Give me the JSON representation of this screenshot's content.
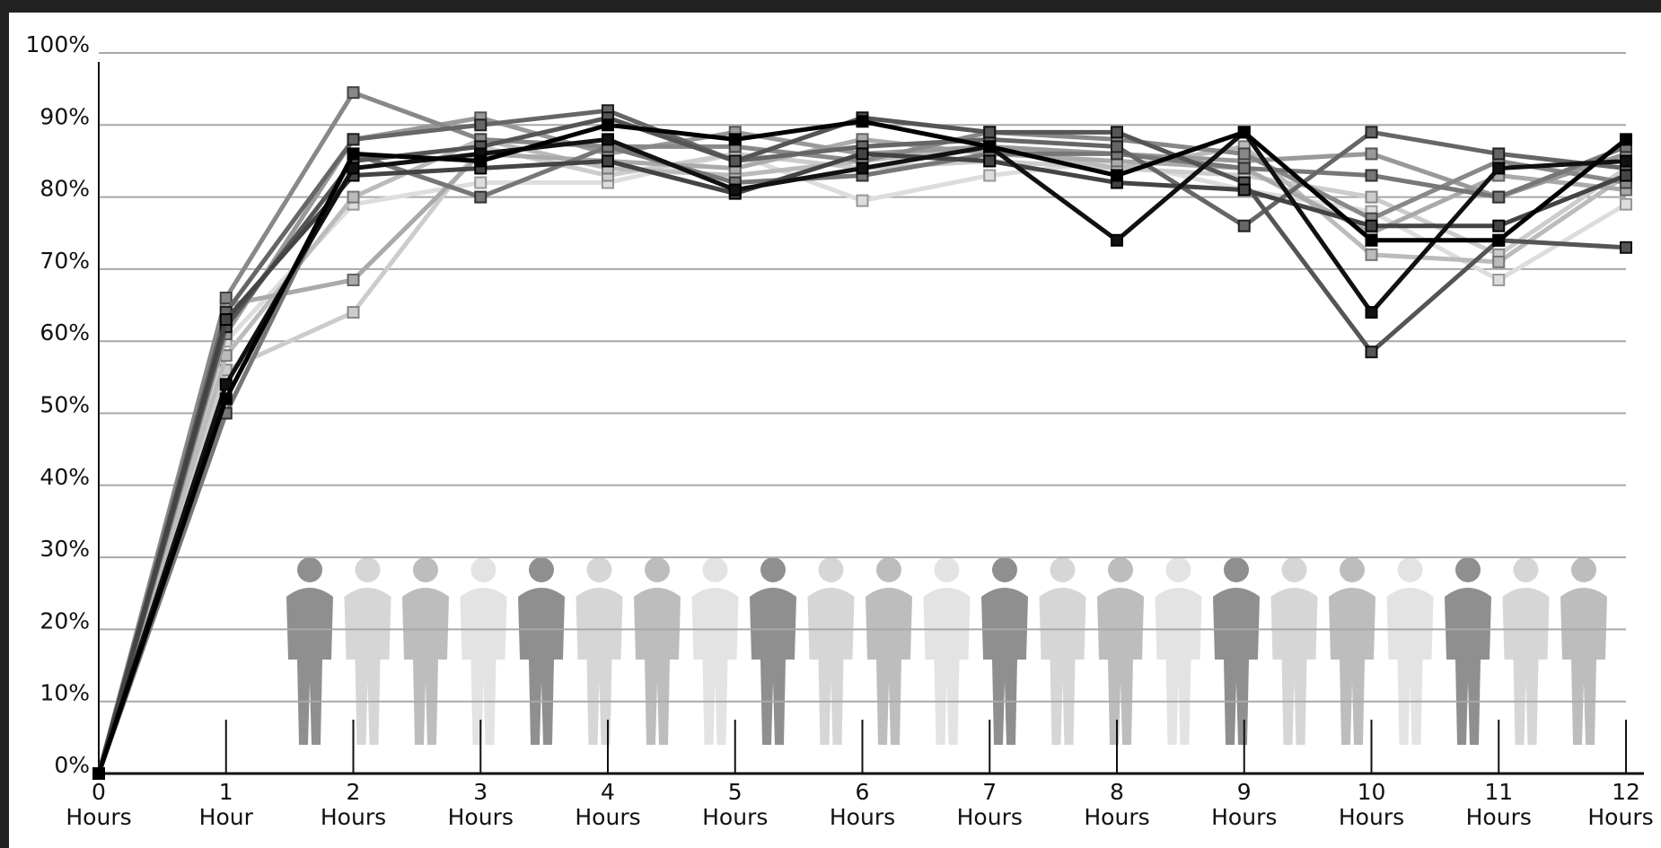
{
  "chart_data": {
    "type": "line",
    "x": [
      0,
      1,
      2,
      3,
      4,
      5,
      6,
      7,
      8,
      9,
      10,
      11,
      12
    ],
    "xlim": [
      0,
      12
    ],
    "xticks": [
      0,
      1,
      2,
      3,
      4,
      5,
      6,
      7,
      8,
      9,
      10,
      11,
      12
    ],
    "x_units": [
      "Hours",
      "Hour",
      "Hours",
      "Hours",
      "Hours",
      "Hours",
      "Hours",
      "Hours",
      "Hours",
      "Hours",
      "Hours",
      "Hours",
      "Hours"
    ],
    "ylim": [
      0,
      100
    ],
    "yticks": [
      {
        "value": 0,
        "label": "0%"
      },
      {
        "value": 10,
        "label": "10%"
      },
      {
        "value": 20,
        "label": "20%"
      },
      {
        "value": 30,
        "label": "30%"
      },
      {
        "value": 40,
        "label": "40%"
      },
      {
        "value": 50,
        "label": "50%"
      },
      {
        "value": 60,
        "label": "60%"
      },
      {
        "value": 70,
        "label": "70%"
      },
      {
        "value": 80,
        "label": "80%"
      },
      {
        "value": 90,
        "label": "90%"
      },
      {
        "value": 100,
        "label": "100%"
      }
    ],
    "grid": true,
    "series": [
      {
        "color": "#dddddd",
        "values": [
          0,
          60,
          79,
          82,
          82,
          86,
          79.5,
          83,
          85,
          81,
          78,
          68.5,
          79
        ]
      },
      {
        "color": "#cccccc",
        "values": [
          0,
          56,
          64,
          87,
          83,
          86,
          84,
          85,
          84,
          83,
          80,
          72,
          84
        ]
      },
      {
        "color": "#bbbbbb",
        "values": [
          0,
          58,
          80,
          88,
          84,
          83,
          85,
          87,
          84,
          87,
          72,
          71,
          83
        ]
      },
      {
        "color": "#aaaaaa",
        "values": [
          0,
          65,
          68.5,
          86,
          85,
          84,
          88,
          86,
          85,
          84,
          75,
          83,
          81
        ]
      },
      {
        "color": "#999999",
        "values": [
          0,
          61,
          88,
          91,
          86,
          89,
          86,
          87,
          86,
          85,
          86,
          80,
          86
        ]
      },
      {
        "color": "#888888",
        "values": [
          0,
          66,
          94.5,
          88,
          87,
          87,
          85,
          89,
          88,
          86,
          77,
          85,
          82
        ]
      },
      {
        "color": "#777777",
        "values": [
          0,
          50,
          86,
          80,
          87,
          82,
          83,
          86,
          86,
          84,
          83,
          80,
          87
        ]
      },
      {
        "color": "#666666",
        "values": [
          0,
          64,
          88,
          90,
          92,
          85,
          87,
          88,
          87,
          76,
          89,
          86,
          84
        ]
      },
      {
        "color": "#555555",
        "values": [
          0,
          62,
          85,
          87,
          91,
          85,
          91,
          89,
          89,
          82,
          58.5,
          74,
          73
        ]
      },
      {
        "color": "#444444",
        "values": [
          0,
          63,
          83,
          84,
          85,
          80.5,
          86,
          85,
          82,
          81,
          76,
          76,
          83
        ]
      },
      {
        "color": "#111111",
        "values": [
          0,
          54,
          84,
          86,
          88,
          81,
          84,
          87,
          74,
          89,
          64,
          84,
          85
        ]
      },
      {
        "color": "#000000",
        "values": [
          0,
          52,
          86,
          85,
          90,
          88,
          90.5,
          87,
          83,
          89,
          74,
          74,
          88
        ]
      }
    ]
  }
}
